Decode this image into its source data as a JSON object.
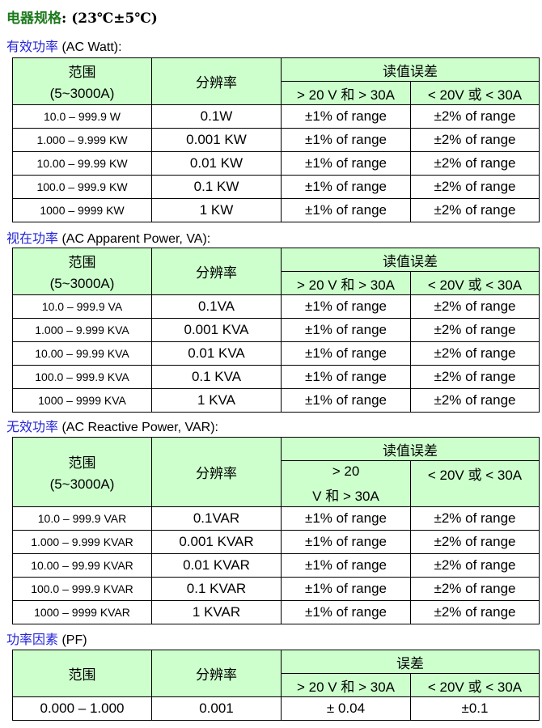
{
  "title": {
    "cn": "电器规格",
    "rest": ": (23℃±5℃)"
  },
  "headers": {
    "range": "范围",
    "range_sub": "(5~3000A)",
    "resolution": "分辨率",
    "reading_error": "读值误差",
    "error": "误差",
    "cond_high": "> 20 V 和 > 30A",
    "cond_high_a": "> 20",
    "cond_high_b": "V 和 > 30A",
    "cond_low": "< 20V 或 < 30A"
  },
  "sections": [
    {
      "cn": "有效功率",
      "en": " (AC Watt):",
      "rows": [
        [
          "10.0 – 999.9 W",
          "0.1W",
          "±1% of range",
          "±2% of range"
        ],
        [
          "1.000 – 9.999 KW",
          "0.001 KW",
          "±1% of range",
          "±2% of range"
        ],
        [
          "10.00 – 99.99 KW",
          "0.01 KW",
          "±1% of range",
          "±2% of range"
        ],
        [
          "100.0 – 999.9 KW",
          "0.1 KW",
          "±1% of range",
          "±2% of range"
        ],
        [
          "1000 – 9999 KW",
          "1 KW",
          "±1% of range",
          "±2% of range"
        ]
      ]
    },
    {
      "cn": "视在功率",
      "en": " (AC Apparent Power, VA):",
      "rows": [
        [
          "10.0 – 999.9 VA",
          "0.1VA",
          "±1% of range",
          "±2% of range"
        ],
        [
          "1.000 – 9.999 KVA",
          "0.001 KVA",
          "±1% of range",
          "±2% of range"
        ],
        [
          "10.00 – 99.99 KVA",
          "0.01 KVA",
          "±1% of range",
          "±2% of range"
        ],
        [
          "100.0 – 999.9 KVA",
          "0.1 KVA",
          "±1% of range",
          "±2% of range"
        ],
        [
          "1000 – 9999 KVA",
          "1 KVA",
          "±1% of range",
          "±2% of range"
        ]
      ]
    },
    {
      "cn": "无效功率",
      "en": " (AC Reactive Power, VAR):",
      "rows": [
        [
          "10.0 – 999.9 VAR",
          "0.1VAR",
          "±1% of range",
          "±2% of range"
        ],
        [
          "1.000 – 9.999 KVAR",
          "0.001 KVAR",
          "±1% of range",
          "±2% of range"
        ],
        [
          "10.00 – 99.99 KVAR",
          "0.01 KVAR",
          "±1% of range",
          "±2% of range"
        ],
        [
          "100.0 – 999.9 KVAR",
          "0.1 KVAR",
          "±1% of range",
          "±2% of range"
        ],
        [
          "1000 – 9999 KVAR",
          "1 KVAR",
          "±1% of range",
          "±2% of range"
        ]
      ]
    },
    {
      "cn": "功率因素",
      "en": " (PF)",
      "rows": [
        [
          "0.000 – 1.000",
          "0.001",
          "± 0.04",
          "±0.1"
        ]
      ]
    }
  ]
}
